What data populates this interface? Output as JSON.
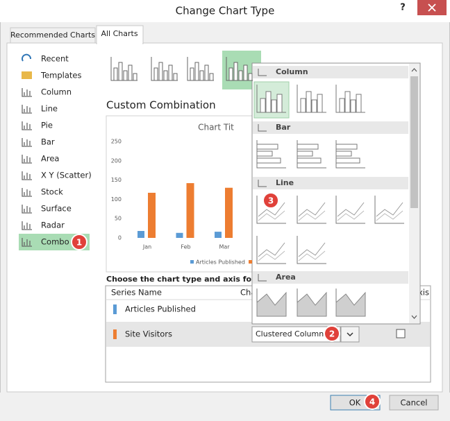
{
  "dialog": {
    "title": "Change Chart Type",
    "help": "?"
  },
  "tabs": [
    "Recommended Charts",
    "All Charts"
  ],
  "chart_types": [
    "Recent",
    "Templates",
    "Column",
    "Line",
    "Pie",
    "Bar",
    "Area",
    "X Y (Scatter)",
    "Stock",
    "Surface",
    "Radar",
    "Combo"
  ],
  "heading": "Custom Combination",
  "preview": {
    "title": "Chart Tit",
    "categories": [
      "Jan",
      "Feb",
      "Mar"
    ],
    "series": [
      {
        "name": "Articles Published",
        "color": "#5b9bd5",
        "values": [
          18,
          13,
          16
        ]
      },
      {
        "color": "#ed7d31",
        "values": [
          117,
          142,
          130
        ]
      }
    ],
    "ylim": [
      0,
      250
    ],
    "yticks": [
      0,
      50,
      100,
      150,
      200,
      250
    ]
  },
  "instruction": "Choose the chart type and axis for your c",
  "table": {
    "headers": [
      "Series Name",
      "Cha",
      "xis"
    ],
    "rows": [
      {
        "name": "Articles Published",
        "color": "#5b9bd5"
      },
      {
        "name": "Site Visitors",
        "color": "#ed7d31",
        "chart_type": "Clustered Column"
      }
    ]
  },
  "dropdown_sections": [
    "Column",
    "Bar",
    "Line",
    "Area"
  ],
  "badges": [
    "1",
    "2",
    "3",
    "4"
  ],
  "buttons": [
    "OK",
    "Cancel"
  ]
}
